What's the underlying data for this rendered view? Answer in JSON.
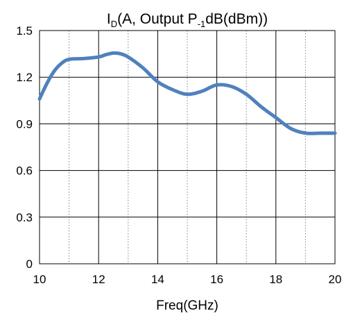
{
  "chart_data": {
    "type": "line",
    "title": {
      "parts": [
        {
          "text": "I",
          "style": "normal"
        },
        {
          "text": "D",
          "style": "sub"
        },
        {
          "text": "(A, Output P",
          "style": "normal"
        },
        {
          "text": "-1",
          "style": "sub"
        },
        {
          "text": "dB(dBm))",
          "style": "normal"
        }
      ]
    },
    "xlabel": "Freq(GHz)",
    "ylabel": "",
    "xlim": [
      10,
      20
    ],
    "ylim": [
      0,
      1.5
    ],
    "x_ticks": [
      10,
      12,
      14,
      16,
      18,
      20
    ],
    "x_tick_labels": [
      "10",
      "12",
      "14",
      "16",
      "18",
      "20"
    ],
    "x_minor_ticks": [
      11,
      13,
      15,
      17,
      19
    ],
    "y_ticks": [
      0,
      0.3,
      0.6,
      0.9,
      1.2,
      1.5
    ],
    "y_tick_labels": [
      "0",
      "0.3",
      "0.6",
      "0.9",
      "1.2",
      "1.5"
    ],
    "grid": {
      "major": "solid",
      "minor_x": "dotted"
    },
    "series": [
      {
        "color": "#4f81bd",
        "x": [
          10,
          10.25,
          10.5,
          10.75,
          11,
          11.5,
          12,
          12.25,
          12.5,
          12.75,
          13,
          13.5,
          14,
          14.5,
          15,
          15.5,
          16,
          16.5,
          17,
          17.5,
          18,
          18.5,
          19,
          19.5,
          20
        ],
        "y": [
          1.06,
          1.16,
          1.24,
          1.29,
          1.315,
          1.32,
          1.33,
          1.345,
          1.355,
          1.35,
          1.33,
          1.26,
          1.17,
          1.12,
          1.09,
          1.11,
          1.15,
          1.14,
          1.09,
          1.01,
          0.94,
          0.87,
          0.84,
          0.84,
          0.84
        ]
      }
    ]
  }
}
